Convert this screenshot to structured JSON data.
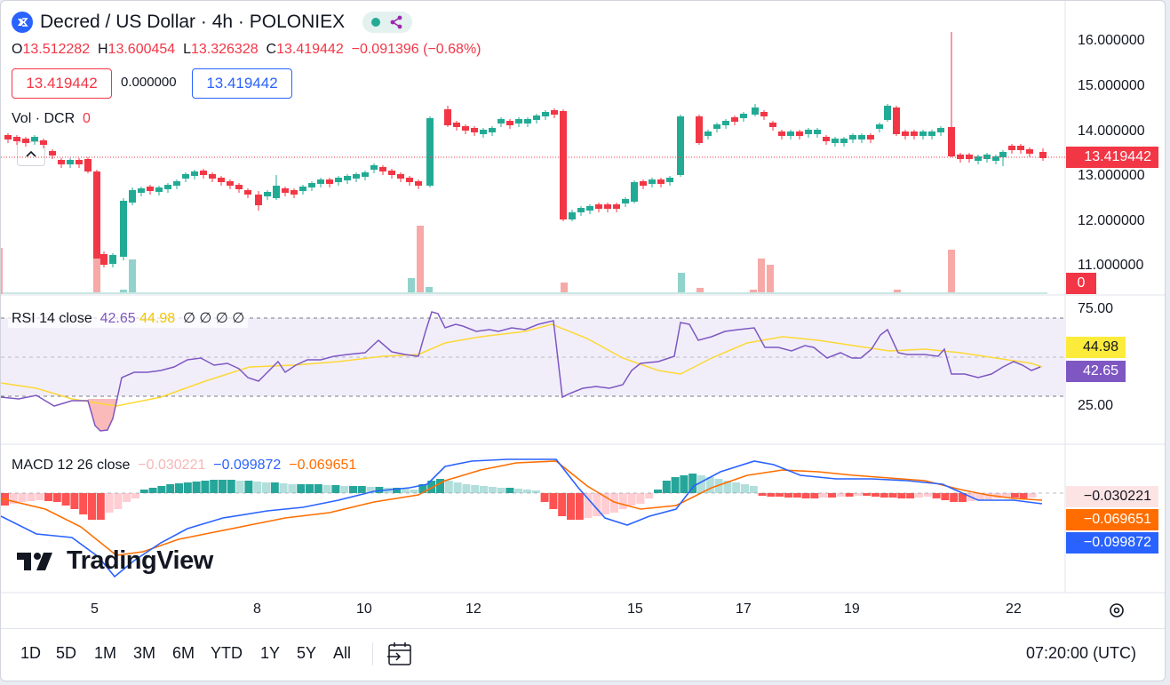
{
  "header": {
    "symbol_title": "Decred / US Dollar · 4h · POLONIEX",
    "ohlc": {
      "o_label": "O",
      "o_value": "13.512282",
      "h_label": "H",
      "h_value": "13.600454",
      "l_label": "L",
      "l_value": "13.326328",
      "c_label": "C",
      "c_value": "13.419442",
      "change": "−0.091396 (−0.68%)"
    },
    "sell_price": "13.419442",
    "spread": "0.000000",
    "buy_price": "13.419442"
  },
  "volume": {
    "label": "Vol · DCR",
    "value": "0",
    "tag": "0"
  },
  "price_axis": {
    "ticks": [
      "16.000000",
      "15.000000",
      "14.000000",
      "13.000000",
      "12.000000",
      "11.000000"
    ],
    "last_price": "13.419442"
  },
  "rsi": {
    "label": "RSI 14 close",
    "value": "42.65",
    "ma_value": "44.98",
    "extras": "∅ ∅ ∅ ∅",
    "ticks": [
      "75.00",
      "25.00"
    ],
    "tag_ma": "44.98",
    "tag_value": "42.65"
  },
  "macd": {
    "label": "MACD 12 26 close",
    "hist": "−0.030221",
    "macd_line": "−0.099872",
    "signal_line": "−0.069651",
    "tag_hist": "−0.030221",
    "tag_signal": "−0.069651",
    "tag_macd": "−0.099872"
  },
  "time_axis": {
    "ticks": [
      "5",
      "8",
      "10",
      "12",
      "15",
      "17",
      "19",
      "22"
    ]
  },
  "logo_text": "TradingView",
  "timeframes": [
    "1D",
    "5D",
    "1M",
    "3M",
    "6M",
    "YTD",
    "1Y",
    "5Y",
    "All"
  ],
  "clock": "07:20:00 (UTC)",
  "colors": {
    "up": "#22ab94",
    "down": "#f23645",
    "rsi": "#7e57c2",
    "rsi_ma": "#fdd835",
    "macd": "#2962ff",
    "signal": "#ff6d00",
    "accent": "#2962ff"
  },
  "icons": [
    "decred-coin-icon",
    "chevron-up-icon",
    "settings-icon",
    "calendar-range-icon",
    "tradingview-logo-icon"
  ]
}
